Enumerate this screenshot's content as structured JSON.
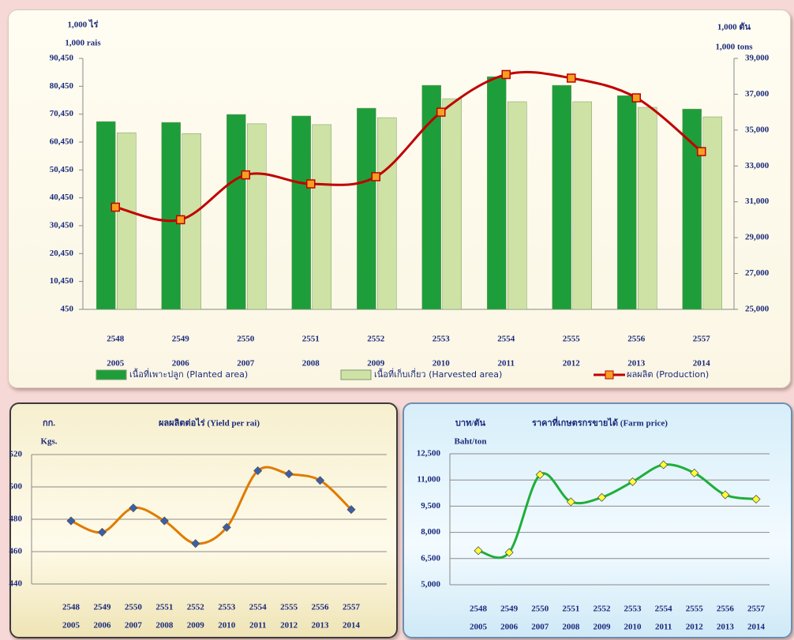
{
  "chart_data": [
    {
      "type": "bar",
      "ylabel": [
        "1,000 ไร่",
        "1,000 rais"
      ],
      "y2label": [
        "1,000 ตัน",
        "1,000 tons"
      ],
      "categories": [
        "2548",
        "2549",
        "2550",
        "2551",
        "2552",
        "2553",
        "2554",
        "2555",
        "2556",
        "2557"
      ],
      "categories2": [
        "2005",
        "2006",
        "2007",
        "2008",
        "2009",
        "2010",
        "2011",
        "2012",
        "2013",
        "2014"
      ],
      "series": [
        {
          "name": "เนื้อที่เพาะปลูก  (Planted area)",
          "color": "#1e9e3a",
          "values": [
            67800,
            67500,
            70350,
            69800,
            72600,
            80800,
            83900,
            80800,
            77100,
            72300
          ]
        },
        {
          "name": "เนื้อที่เก็บเกี่ยว  (Harvested area)",
          "color": "#cde2a4",
          "values": [
            63800,
            63500,
            67000,
            66700,
            69200,
            76000,
            74900,
            74900,
            72900,
            69500
          ]
        },
        {
          "name": "ผลผลิต  (Production)",
          "type": "line",
          "axis": "y2",
          "color": "#c00000",
          "marker_color": "#f5a020",
          "values": [
            30700,
            30000,
            32500,
            32000,
            32400,
            36000,
            38100,
            37900,
            36800,
            33800
          ]
        }
      ],
      "ylim": [
        450,
        90450
      ],
      "yticks": [
        450,
        {
          "value": 10450,
          "label": "10,450"
        },
        {
          "value": 20450,
          "label": "20,450"
        },
        {
          "value": 30450,
          "label": "30,450"
        },
        {
          "value": 40450,
          "label": "40,450"
        },
        {
          "value": 50450,
          "label": "50,450"
        },
        {
          "value": 60450,
          "label": "60,450"
        },
        {
          "value": 70450,
          "label": "70,450"
        },
        {
          "value": 80450,
          "label": "80,450"
        },
        {
          "value": 90450,
          "label": "90,450"
        }
      ],
      "y2lim": [
        25000,
        39000
      ],
      "y2ticks": [
        {
          "value": 25000,
          "label": "25,000"
        },
        {
          "value": 27000,
          "label": "27,000"
        },
        {
          "value": 29000,
          "label": "29,000"
        },
        {
          "value": 31000,
          "label": "31,000"
        },
        {
          "value": 33000,
          "label": "33,000"
        },
        {
          "value": 35000,
          "label": "35,000"
        },
        {
          "value": 37000,
          "label": "37,000"
        },
        {
          "value": 39000,
          "label": "39,000"
        }
      ],
      "grid": false
    },
    {
      "type": "line",
      "title": "ผลผลิตต่อไร่ (Yield per rai)",
      "ylabel": [
        "กก.",
        "Kgs."
      ],
      "categories": [
        "2548",
        "2549",
        "2550",
        "2551",
        "2552",
        "2553",
        "2554",
        "2555",
        "2556",
        "2557"
      ],
      "categories2": [
        "2005",
        "2006",
        "2007",
        "2008",
        "2009",
        "2010",
        "2011",
        "2012",
        "2013",
        "2014"
      ],
      "series": [
        {
          "color": "#e07b00",
          "marker_color": "#3a5fa8",
          "values": [
            479,
            472,
            487,
            479,
            465,
            475,
            510,
            508,
            504,
            486
          ]
        }
      ],
      "ylim": [
        440,
        520
      ],
      "yticks": [
        440,
        460,
        480,
        500,
        520
      ],
      "grid": true
    },
    {
      "type": "line",
      "title": "ราคาที่เกษตรกรขายได้  (Farm price)",
      "ylabel": [
        "บาท/ตัน",
        "Baht/ton"
      ],
      "categories": [
        "2548",
        "2549",
        "2550",
        "2551",
        "2552",
        "2553",
        "2554",
        "2555",
        "2556",
        "2557"
      ],
      "categories2": [
        "2005",
        "2006",
        "2007",
        "2008",
        "2009",
        "2010",
        "2011",
        "2012",
        "2013",
        "2014"
      ],
      "series": [
        {
          "color": "#1fae3a",
          "marker_color": "#ffff33",
          "values": [
            6950,
            6850,
            11300,
            9750,
            10000,
            10900,
            11870,
            11400,
            10150,
            9900
          ]
        }
      ],
      "ylim": [
        5000,
        12500
      ],
      "yticks": [
        {
          "value": 5000,
          "label": "5,000"
        },
        {
          "value": 6500,
          "label": "6,500"
        },
        {
          "value": 8000,
          "label": "8,000"
        },
        {
          "value": 9500,
          "label": "9,500"
        },
        {
          "value": 11000,
          "label": "11,000"
        },
        {
          "value": 12500,
          "label": "12,500"
        }
      ],
      "grid": true
    }
  ]
}
